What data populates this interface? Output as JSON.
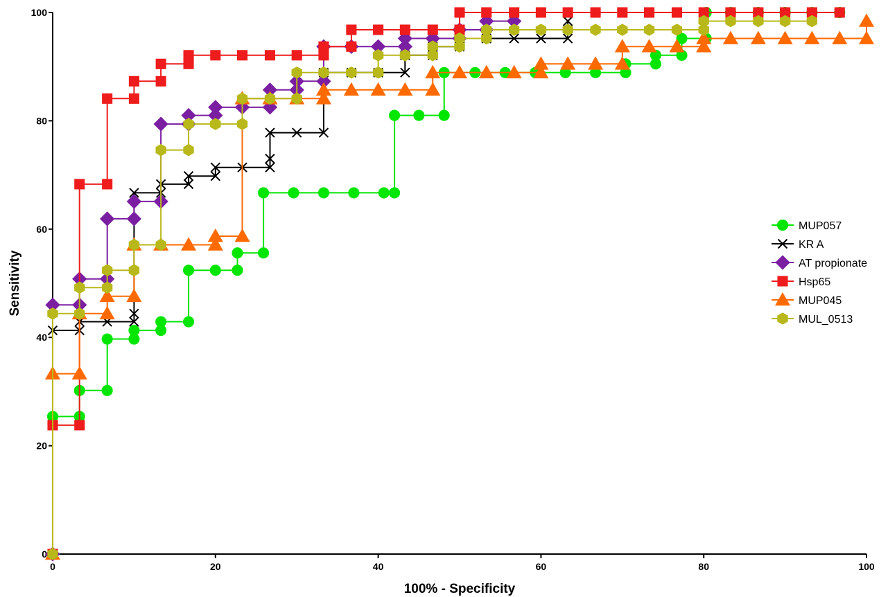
{
  "chart_data": {
    "type": "line",
    "subtype": "ROC step curves",
    "xlabel": "100% - Specificity",
    "ylabel": "Sensitivity",
    "xlim": [
      0,
      100
    ],
    "ylim": [
      0,
      100
    ],
    "xticks": [
      0,
      20,
      40,
      60,
      80,
      100
    ],
    "yticks": [
      0,
      20,
      40,
      60,
      80,
      100
    ],
    "grid": false,
    "legend_position": "right",
    "series": [
      {
        "name": "MUP057",
        "color": "#00e600",
        "marker": "circle",
        "points": [
          [
            0,
            0
          ],
          [
            0,
            25.4
          ],
          [
            3.3,
            25.4
          ],
          [
            3.3,
            30.2
          ],
          [
            6.7,
            30.2
          ],
          [
            6.7,
            39.7
          ],
          [
            10,
            39.7
          ],
          [
            10,
            41.3
          ],
          [
            13.3,
            41.3
          ],
          [
            13.3,
            42.9
          ],
          [
            16.7,
            42.9
          ],
          [
            16.7,
            52.4
          ],
          [
            20,
            52.4
          ],
          [
            22.7,
            52.4
          ],
          [
            22.7,
            55.6
          ],
          [
            25.9,
            55.6
          ],
          [
            25.9,
            66.7
          ],
          [
            29.6,
            66.7
          ],
          [
            33.3,
            66.7
          ],
          [
            37,
            66.7
          ],
          [
            40.7,
            66.7
          ],
          [
            42,
            66.7
          ],
          [
            42,
            81
          ],
          [
            45,
            81
          ],
          [
            48.1,
            81
          ],
          [
            48.1,
            88.9
          ],
          [
            51.9,
            88.9
          ],
          [
            55.6,
            88.9
          ],
          [
            59.3,
            88.9
          ],
          [
            63,
            88.9
          ],
          [
            66.7,
            88.9
          ],
          [
            70.4,
            88.9
          ],
          [
            70.4,
            90.5
          ],
          [
            74.1,
            90.5
          ],
          [
            74.1,
            92.1
          ],
          [
            77.3,
            92.1
          ],
          [
            77.3,
            95.2
          ],
          [
            80.3,
            95.2
          ],
          [
            80.3,
            100
          ],
          [
            83.3,
            100
          ],
          [
            86.7,
            100
          ],
          [
            90,
            100
          ],
          [
            93.3,
            100
          ],
          [
            96.7,
            100
          ]
        ]
      },
      {
        "name": "KR  A",
        "color": "#000000",
        "marker": "x",
        "points": [
          [
            0,
            0
          ],
          [
            0,
            41.3
          ],
          [
            3.3,
            41.3
          ],
          [
            3.3,
            42.9
          ],
          [
            6.7,
            42.9
          ],
          [
            10,
            42.9
          ],
          [
            10,
            44.4
          ],
          [
            10,
            66.7
          ],
          [
            13.3,
            66.7
          ],
          [
            13.3,
            68.3
          ],
          [
            16.7,
            68.3
          ],
          [
            16.7,
            69.8
          ],
          [
            20,
            69.8
          ],
          [
            20,
            71.4
          ],
          [
            23.3,
            71.4
          ],
          [
            26.7,
            71.4
          ],
          [
            26.7,
            73
          ],
          [
            26.7,
            77.8
          ],
          [
            30,
            77.8
          ],
          [
            33.3,
            77.8
          ],
          [
            33.3,
            88.9
          ],
          [
            36.7,
            88.9
          ],
          [
            40,
            88.9
          ],
          [
            43.3,
            88.9
          ],
          [
            43.3,
            92.1
          ],
          [
            46.7,
            92.1
          ],
          [
            46.7,
            93.7
          ],
          [
            50,
            93.7
          ],
          [
            50,
            95.2
          ],
          [
            53.3,
            95.2
          ],
          [
            56.7,
            95.2
          ],
          [
            60,
            95.2
          ],
          [
            63.3,
            95.2
          ],
          [
            63.3,
            98.4
          ]
        ]
      },
      {
        "name": "AT propionate",
        "color": "#7b1fa2",
        "marker": "diamond",
        "points": [
          [
            0,
            0
          ],
          [
            0,
            46
          ],
          [
            3.3,
            46
          ],
          [
            3.3,
            50.8
          ],
          [
            6.7,
            50.8
          ],
          [
            6.7,
            61.9
          ],
          [
            10,
            61.9
          ],
          [
            10,
            65.1
          ],
          [
            13.3,
            65.1
          ],
          [
            13.3,
            79.4
          ],
          [
            16.7,
            79.4
          ],
          [
            16.7,
            81
          ],
          [
            20,
            81
          ],
          [
            20,
            82.5
          ],
          [
            23.3,
            82.5
          ],
          [
            26.7,
            82.5
          ],
          [
            26.7,
            85.7
          ],
          [
            30,
            85.7
          ],
          [
            30,
            87.3
          ],
          [
            33.3,
            87.3
          ],
          [
            33.3,
            93.7
          ],
          [
            36.7,
            93.7
          ],
          [
            40,
            93.7
          ],
          [
            43.3,
            93.7
          ],
          [
            43.3,
            95.2
          ],
          [
            46.7,
            95.2
          ],
          [
            50,
            95.2
          ],
          [
            50,
            96.8
          ],
          [
            53.3,
            96.8
          ],
          [
            53.3,
            98.4
          ],
          [
            56.7,
            98.4
          ]
        ]
      },
      {
        "name": "Hsp65",
        "color": "#ee1c1c",
        "marker": "square",
        "points": [
          [
            0,
            0
          ],
          [
            0,
            23.8
          ],
          [
            3.3,
            23.8
          ],
          [
            3.3,
            68.3
          ],
          [
            6.7,
            68.3
          ],
          [
            6.7,
            84.1
          ],
          [
            10,
            84.1
          ],
          [
            10,
            87.3
          ],
          [
            13.3,
            87.3
          ],
          [
            13.3,
            90.5
          ],
          [
            16.7,
            90.5
          ],
          [
            16.7,
            92.1
          ],
          [
            20,
            92.1
          ],
          [
            23.3,
            92.1
          ],
          [
            26.7,
            92.1
          ],
          [
            30,
            92.1
          ],
          [
            33.3,
            92.1
          ],
          [
            33.3,
            93.7
          ],
          [
            36.7,
            93.7
          ],
          [
            36.7,
            96.8
          ],
          [
            40,
            96.8
          ],
          [
            43.3,
            96.8
          ],
          [
            46.7,
            96.8
          ],
          [
            50,
            96.8
          ],
          [
            50,
            100
          ],
          [
            53.3,
            100
          ],
          [
            56.7,
            100
          ],
          [
            60,
            100
          ],
          [
            63.3,
            100
          ],
          [
            66.7,
            100
          ],
          [
            70,
            100
          ],
          [
            73.3,
            100
          ],
          [
            76.7,
            100
          ],
          [
            80,
            100
          ],
          [
            83.3,
            100
          ],
          [
            86.7,
            100
          ],
          [
            90,
            100
          ],
          [
            93.3,
            100
          ],
          [
            96.7,
            100
          ]
        ]
      },
      {
        "name": "MUP045",
        "color": "#ff6a00",
        "marker": "triangle",
        "points": [
          [
            0,
            0
          ],
          [
            0,
            33.3
          ],
          [
            3.3,
            33.3
          ],
          [
            3.3,
            44.4
          ],
          [
            6.7,
            44.4
          ],
          [
            6.7,
            47.6
          ],
          [
            10,
            47.6
          ],
          [
            10,
            57.1
          ],
          [
            13.3,
            57.1
          ],
          [
            16.7,
            57.1
          ],
          [
            20,
            57.1
          ],
          [
            20,
            58.7
          ],
          [
            23.3,
            58.7
          ],
          [
            23.3,
            84.1
          ],
          [
            26.7,
            84.1
          ],
          [
            30,
            84.1
          ],
          [
            33.3,
            84.1
          ],
          [
            33.3,
            85.7
          ],
          [
            36.7,
            85.7
          ],
          [
            40,
            85.7
          ],
          [
            43.3,
            85.7
          ],
          [
            46.7,
            85.7
          ],
          [
            46.7,
            88.9
          ],
          [
            50,
            88.9
          ],
          [
            53.3,
            88.9
          ],
          [
            56.7,
            88.9
          ],
          [
            60,
            88.9
          ],
          [
            60,
            90.5
          ],
          [
            63.3,
            90.5
          ],
          [
            66.7,
            90.5
          ],
          [
            70,
            90.5
          ],
          [
            70,
            93.7
          ],
          [
            73.3,
            93.7
          ],
          [
            76.7,
            93.7
          ],
          [
            80,
            93.7
          ],
          [
            80,
            95.2
          ],
          [
            83.3,
            95.2
          ],
          [
            86.7,
            95.2
          ],
          [
            90,
            95.2
          ],
          [
            93.3,
            95.2
          ],
          [
            96.7,
            95.2
          ],
          [
            100,
            95.2
          ],
          [
            100,
            98.4
          ]
        ]
      },
      {
        "name": "MUL_0513",
        "color": "#b8b81a",
        "marker": "hexagon",
        "points": [
          [
            0,
            0
          ],
          [
            0,
            44.4
          ],
          [
            3.3,
            44.4
          ],
          [
            3.3,
            49.2
          ],
          [
            6.7,
            49.2
          ],
          [
            6.7,
            52.4
          ],
          [
            10,
            52.4
          ],
          [
            10,
            57.1
          ],
          [
            13.3,
            57.1
          ],
          [
            13.3,
            74.6
          ],
          [
            16.7,
            74.6
          ],
          [
            16.7,
            79.4
          ],
          [
            20,
            79.4
          ],
          [
            23.3,
            79.4
          ],
          [
            23.3,
            84.1
          ],
          [
            26.7,
            84.1
          ],
          [
            30,
            84.1
          ],
          [
            30,
            88.9
          ],
          [
            33.3,
            88.9
          ],
          [
            36.7,
            88.9
          ],
          [
            40,
            88.9
          ],
          [
            40,
            92.1
          ],
          [
            43.3,
            92.1
          ],
          [
            46.7,
            92.1
          ],
          [
            46.7,
            93.7
          ],
          [
            50,
            93.7
          ],
          [
            50,
            95.2
          ],
          [
            53.3,
            95.2
          ],
          [
            53.3,
            96.8
          ],
          [
            56.7,
            96.8
          ],
          [
            60,
            96.8
          ],
          [
            63.3,
            96.8
          ],
          [
            66.7,
            96.8
          ],
          [
            70,
            96.8
          ],
          [
            73.3,
            96.8
          ],
          [
            76.7,
            96.8
          ],
          [
            80,
            96.8
          ],
          [
            80,
            98.4
          ],
          [
            83.3,
            98.4
          ],
          [
            86.7,
            98.4
          ],
          [
            90,
            98.4
          ],
          [
            93.3,
            98.4
          ]
        ]
      }
    ]
  }
}
